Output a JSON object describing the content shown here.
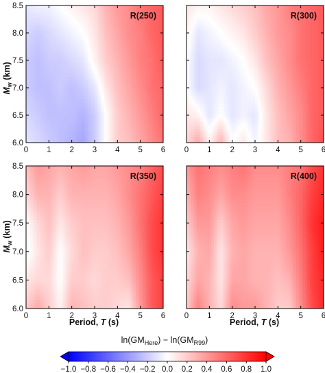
{
  "chart_data": {
    "type": "heatmap",
    "layout": "2x2 panels",
    "x_range": [
      0,
      6
    ],
    "y_range": [
      6.0,
      8.5
    ],
    "x_ticks": [
      "0",
      "1",
      "2",
      "3",
      "4",
      "5",
      "6"
    ],
    "y_ticks": [
      "6.0",
      "6.5",
      "7.0",
      "7.5",
      "8.0",
      "8.5"
    ],
    "xlabel": {
      "main": "Period, ",
      "var": "T",
      "unit": " (s)"
    },
    "ylabel": {
      "main": "M",
      "sub": "w",
      "unit": " (km)"
    },
    "colormap": "blue-white-red diverging",
    "color_range": [
      -1.0,
      1.0
    ],
    "colorbar": {
      "title": {
        "pre": "ln(GM",
        "sub1": "Here",
        "mid": ") − ln(GM",
        "sub2": "R99",
        "post": ")"
      },
      "ticks": [
        "−1.0",
        "−0.8",
        "−0.6",
        "−0.4",
        "−0.2",
        "0.0",
        "0.2",
        "0.4",
        "0.6",
        "0.8",
        "1.0"
      ],
      "extend": "both"
    },
    "panels": [
      {
        "label": "R(250)",
        "x": [
          0,
          0.5,
          1,
          1.5,
          2,
          2.5,
          3,
          3.5,
          4,
          4.5,
          5,
          5.5,
          6
        ],
        "y": [
          6.0,
          6.5,
          7.0,
          7.5,
          8.0,
          8.5
        ],
        "z": [
          [
            -0.1,
            -0.15,
            -0.2,
            -0.25,
            -0.3,
            -0.35,
            -0.2,
            0.0,
            0.2,
            0.25,
            0.35,
            0.45,
            0.55
          ],
          [
            -0.15,
            -0.2,
            -0.25,
            -0.25,
            -0.25,
            -0.3,
            -0.2,
            0.0,
            0.2,
            0.3,
            0.4,
            0.5,
            0.6
          ],
          [
            -0.2,
            -0.25,
            -0.25,
            -0.2,
            -0.25,
            -0.2,
            -0.1,
            0.1,
            0.25,
            0.35,
            0.45,
            0.55,
            0.6
          ],
          [
            -0.2,
            -0.25,
            -0.2,
            -0.2,
            -0.15,
            -0.1,
            0.05,
            0.2,
            0.3,
            0.4,
            0.5,
            0.55,
            0.65
          ],
          [
            -0.15,
            -0.2,
            -0.15,
            -0.1,
            -0.05,
            0.0,
            0.1,
            0.25,
            0.35,
            0.45,
            0.5,
            0.6,
            0.65
          ],
          [
            -0.1,
            -0.05,
            -0.05,
            0.0,
            0.05,
            0.1,
            0.15,
            0.3,
            0.4,
            0.45,
            0.55,
            0.6,
            0.65
          ]
        ]
      },
      {
        "label": "R(300)",
        "x": [
          0,
          0.5,
          1,
          1.5,
          2,
          2.5,
          3,
          3.5,
          4,
          4.5,
          5,
          5.5,
          6
        ],
        "y": [
          6.0,
          6.5,
          7.0,
          7.5,
          8.0,
          8.5
        ],
        "z": [
          [
            0.15,
            0.35,
            0.05,
            0.3,
            0.0,
            0.1,
            -0.05,
            0.1,
            0.25,
            0.3,
            0.45,
            0.6,
            0.7
          ],
          [
            0.1,
            0.05,
            -0.1,
            0.0,
            -0.1,
            -0.05,
            -0.1,
            0.1,
            0.25,
            0.35,
            0.45,
            0.6,
            0.65
          ],
          [
            0.0,
            -0.15,
            -0.1,
            -0.05,
            -0.1,
            -0.05,
            0.0,
            0.15,
            0.3,
            0.4,
            0.5,
            0.6,
            0.65
          ],
          [
            0.0,
            -0.15,
            -0.1,
            -0.1,
            -0.05,
            0.0,
            0.1,
            0.25,
            0.35,
            0.45,
            0.55,
            0.6,
            0.65
          ],
          [
            0.05,
            -0.1,
            -0.05,
            0.0,
            0.05,
            0.1,
            0.2,
            0.3,
            0.4,
            0.45,
            0.55,
            0.6,
            0.65
          ],
          [
            0.1,
            0.05,
            0.05,
            0.1,
            0.15,
            0.2,
            0.25,
            0.35,
            0.4,
            0.5,
            0.55,
            0.6,
            0.65
          ]
        ]
      },
      {
        "label": "R(350)",
        "x": [
          0,
          0.5,
          1,
          1.5,
          2,
          2.5,
          3,
          3.5,
          4,
          4.5,
          5,
          5.5,
          6
        ],
        "y": [
          6.0,
          6.5,
          7.0,
          7.5,
          8.0,
          8.5
        ],
        "z": [
          [
            0.2,
            0.35,
            0.2,
            0.05,
            0.3,
            0.25,
            0.2,
            0.2,
            0.15,
            0.1,
            0.4,
            0.65,
            0.75
          ],
          [
            0.1,
            0.15,
            0.15,
            0.0,
            0.2,
            0.2,
            0.15,
            0.2,
            0.2,
            0.25,
            0.45,
            0.65,
            0.75
          ],
          [
            -0.05,
            0.1,
            0.2,
            0.0,
            0.15,
            0.25,
            0.2,
            0.2,
            0.25,
            0.35,
            0.5,
            0.7,
            0.8
          ],
          [
            0.0,
            0.15,
            0.25,
            0.1,
            0.2,
            0.25,
            0.25,
            0.25,
            0.3,
            0.4,
            0.55,
            0.7,
            0.8
          ],
          [
            0.15,
            0.3,
            0.3,
            0.2,
            0.3,
            0.3,
            0.3,
            0.3,
            0.35,
            0.45,
            0.55,
            0.65,
            0.75
          ],
          [
            0.25,
            0.4,
            0.35,
            0.3,
            0.35,
            0.4,
            0.35,
            0.35,
            0.4,
            0.45,
            0.5,
            0.6,
            0.7
          ]
        ]
      },
      {
        "label": "R(400)",
        "x": [
          0,
          0.5,
          1,
          1.5,
          2,
          2.5,
          3,
          3.5,
          4,
          4.5,
          5,
          5.5,
          6
        ],
        "y": [
          6.0,
          6.5,
          7.0,
          7.5,
          8.0,
          8.5
        ],
        "z": [
          [
            0.2,
            0.5,
            0.3,
            0.15,
            0.45,
            0.4,
            0.4,
            0.3,
            0.2,
            0.2,
            0.45,
            0.7,
            0.85
          ],
          [
            0.15,
            0.35,
            0.3,
            0.1,
            0.35,
            0.35,
            0.3,
            0.3,
            0.25,
            0.3,
            0.5,
            0.75,
            0.85
          ],
          [
            0.1,
            0.3,
            0.35,
            0.1,
            0.3,
            0.35,
            0.3,
            0.3,
            0.3,
            0.4,
            0.55,
            0.75,
            0.9
          ],
          [
            0.2,
            0.4,
            0.4,
            0.2,
            0.35,
            0.4,
            0.35,
            0.35,
            0.35,
            0.45,
            0.6,
            0.8,
            0.9
          ],
          [
            0.3,
            0.5,
            0.45,
            0.35,
            0.45,
            0.45,
            0.4,
            0.4,
            0.4,
            0.5,
            0.6,
            0.75,
            0.85
          ],
          [
            0.4,
            0.55,
            0.5,
            0.45,
            0.5,
            0.55,
            0.45,
            0.45,
            0.45,
            0.5,
            0.55,
            0.7,
            0.8
          ]
        ]
      }
    ]
  }
}
